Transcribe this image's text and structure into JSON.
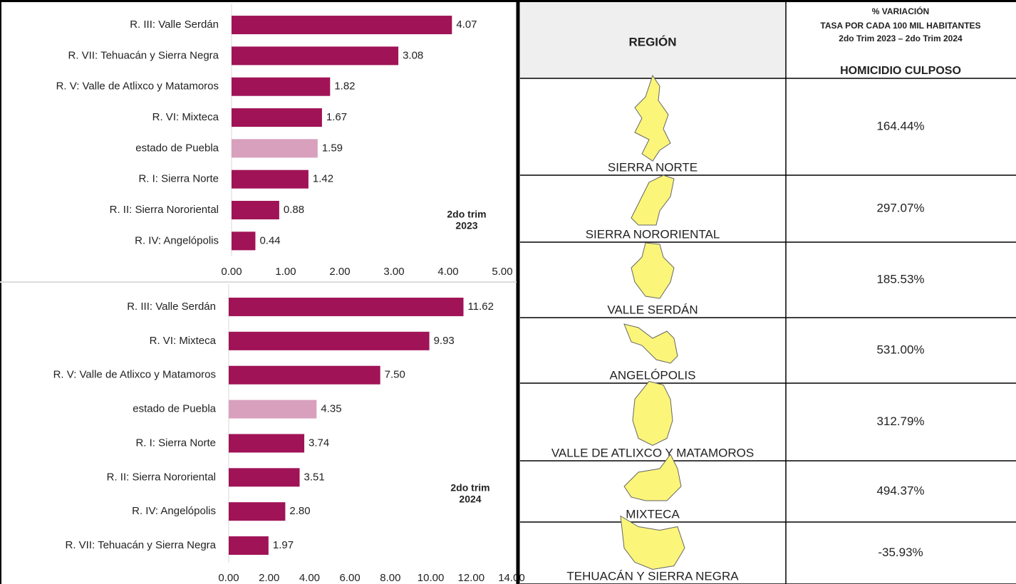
{
  "chart_data": [
    {
      "type": "bar_h",
      "categories": [
        "R. III: Valle Serdán",
        "R. VII: Tehuacán y Sierra Negra",
        "R. V: Valle de Atlixco y Matamoros",
        "R. VI:  Mixteca",
        "estado de Puebla",
        "R. I: Sierra Norte",
        "R. II: Sierra Nororiental",
        "R. IV: Angelópolis"
      ],
      "values": [
        4.07,
        3.08,
        1.82,
        1.67,
        1.59,
        1.42,
        0.88,
        0.44
      ],
      "value_labels": [
        "4.07",
        "3.08",
        "1.82",
        "1.67",
        "1.59",
        "1.42",
        "0.88",
        "0.44"
      ],
      "colors": [
        "#a01356",
        "#a01356",
        "#a01356",
        "#a01356",
        "#d8a0bd",
        "#a01356",
        "#a01356",
        "#a01356"
      ],
      "xlim": [
        0,
        5
      ],
      "xticks": [
        {
          "value": 0,
          "label": "0.00"
        },
        {
          "value": 1,
          "label": "1.00"
        },
        {
          "value": 2,
          "label": "2.00"
        },
        {
          "value": 3,
          "label": "3.00"
        },
        {
          "value": 4,
          "label": "4.00"
        },
        {
          "value": 5,
          "label": "5.00"
        }
      ],
      "annotation": [
        "2do trim",
        "2023"
      ]
    },
    {
      "type": "bar_h",
      "categories": [
        "R. III: Valle Serdán",
        "R. VI:  Mixteca",
        "R. V: Valle de Atlixco y Matamoros",
        "estado de Puebla",
        "R. I: Sierra Norte",
        "R. II: Sierra Nororiental",
        "R. IV: Angelópolis",
        "R. VII: Tehuacán y Sierra Negra"
      ],
      "values": [
        11.62,
        9.93,
        7.5,
        4.35,
        3.74,
        3.51,
        2.8,
        1.97
      ],
      "value_labels": [
        "11.62",
        "9.93",
        "7.50",
        "4.35",
        "3.74",
        "3.51",
        "2.80",
        "1.97"
      ],
      "colors": [
        "#a01356",
        "#a01356",
        "#a01356",
        "#d8a0bd",
        "#a01356",
        "#a01356",
        "#a01356",
        "#a01356"
      ],
      "xlim": [
        0,
        14
      ],
      "xticks": [
        {
          "value": 0,
          "label": "0.00"
        },
        {
          "value": 2,
          "label": "2.00"
        },
        {
          "value": 4,
          "label": "4.00"
        },
        {
          "value": 6,
          "label": "6.00"
        },
        {
          "value": 8,
          "label": "8.00"
        },
        {
          "value": 10,
          "label": "10.00"
        },
        {
          "value": 12,
          "label": "12.00"
        },
        {
          "value": 14,
          "label": "14.00"
        }
      ],
      "annotation": [
        "2do trim",
        "2024"
      ]
    }
  ],
  "table": {
    "header_region": "REGIÓN",
    "header_variation": [
      "% VARIACIÓN",
      "TASA POR CADA 100 MIL HABITANTES",
      "2do Trim 2023 – 2do Trim 2024"
    ],
    "header_crime": "HOMICIDIO CULPOSO",
    "rows": [
      {
        "region": "SIERRA NORTE",
        "value": "164.44%"
      },
      {
        "region": "SIERRA NORORIENTAL",
        "value": "297.07%"
      },
      {
        "region": "VALLE SERDÁN",
        "value": "185.53%"
      },
      {
        "region": "ANGELÓPOLIS",
        "value": "531.00%"
      },
      {
        "region": "VALLE DE ATLIXCO Y MATAMOROS",
        "value": "312.79%"
      },
      {
        "region": "MIXTECA",
        "value": "494.37%"
      },
      {
        "region": "TEHUACÁN Y SIERRA NEGRA",
        "value": "-35.93%"
      }
    ]
  }
}
